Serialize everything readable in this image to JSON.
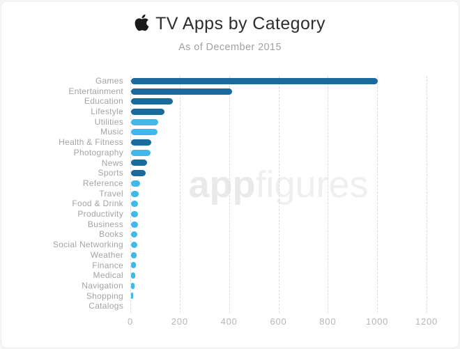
{
  "header": {
    "title": "TV Apps by Category",
    "subtitle": "As of December 2015"
  },
  "watermark": {
    "bold": "app",
    "light": "figures"
  },
  "colors": {
    "dark_bar": "#1a6a9d",
    "light_bar": "#41b8ea",
    "grid": "#dbdbdb",
    "axis_text": "#b5b5b5",
    "label_text": "#a3a3a3",
    "title_text": "#2d2d2d",
    "subtitle_text": "#a0a0a0",
    "watermark_text": "#ececec"
  },
  "chart_data": {
    "type": "bar",
    "orientation": "horizontal",
    "title": "TV Apps by Category",
    "subtitle": "As of December 2015",
    "xlabel": "",
    "ylabel": "",
    "xlim": [
      0,
      1200
    ],
    "x_ticks": [
      "0",
      "200",
      "400",
      "600",
      "800",
      "1000",
      "1200"
    ],
    "grid": "vertical-dashed",
    "legend": "none",
    "categories": [
      "Games",
      "Entertainment",
      "Education",
      "Lifestyle",
      "Utilities",
      "Music",
      "Health & Fitness",
      "Photography",
      "News",
      "Sports",
      "Reference",
      "Travel",
      "Food & Drink",
      "Productivity",
      "Business",
      "Books",
      "Social Networking",
      "Weather",
      "Finance",
      "Medical",
      "Navigation",
      "Shopping",
      "Catalogs"
    ],
    "values": [
      1000,
      410,
      170,
      135,
      110,
      107,
      83,
      80,
      64,
      58,
      38,
      31,
      29,
      28,
      27,
      25,
      24,
      22,
      21,
      16,
      15,
      8,
      0
    ],
    "bar_shades": [
      "dark",
      "dark",
      "dark",
      "dark",
      "light",
      "light",
      "dark",
      "light",
      "dark",
      "dark",
      "light",
      "light",
      "light",
      "light",
      "light",
      "light",
      "light",
      "light",
      "light",
      "light",
      "light",
      "light",
      "light"
    ]
  }
}
